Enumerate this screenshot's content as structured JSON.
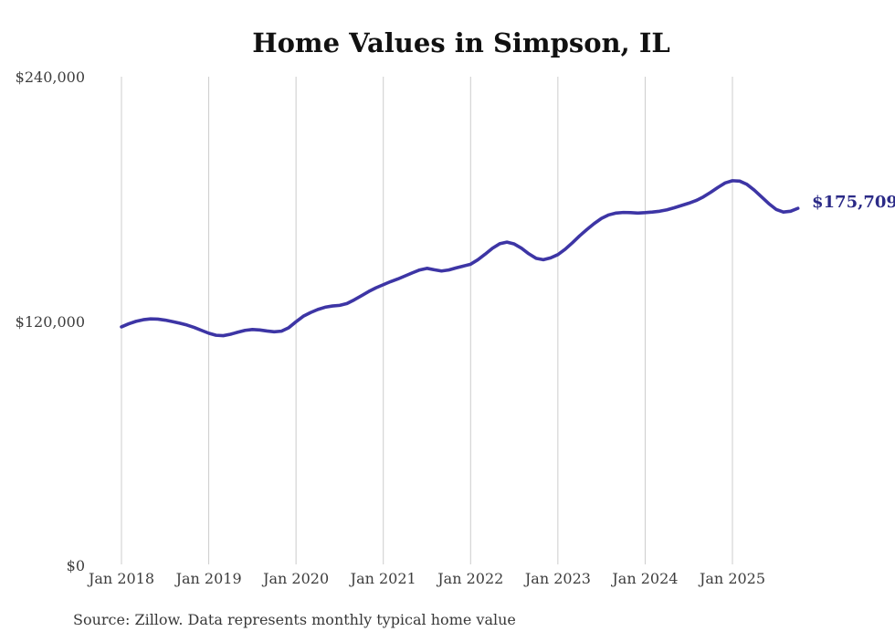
{
  "chart": {
    "title": "Home Values in Simpson, IL",
    "end_label": "$175,709",
    "source_note": "Source: Zillow. Data represents monthly typical home value",
    "y_axis": {
      "labels": [
        "$240,000",
        "$120,000",
        "$0"
      ]
    },
    "x_axis": {
      "labels": [
        "Jan 2018",
        "Jan 2019",
        "Jan 2020",
        "Jan 2021",
        "Jan 2022",
        "Jan 2023",
        "Jan 2024",
        "Jan 2025"
      ]
    },
    "colors": {
      "line": "#3d35a5",
      "end_label_text": "#2b2a87",
      "grid": "#cccccc",
      "title_text": "#111111",
      "axis_text": "#3d3d3d"
    }
  },
  "chart_data": {
    "type": "line",
    "title": "Home Values in Simpson, IL",
    "x_unit": "month",
    "x_start": "2018-01",
    "x_end": "2025-10",
    "x_tick_labels": [
      "Jan 2018",
      "Jan 2019",
      "Jan 2020",
      "Jan 2021",
      "Jan 2022",
      "Jan 2023",
      "Jan 2024",
      "Jan 2025"
    ],
    "ylim": [
      0,
      240000
    ],
    "y_ticks": [
      {
        "value": 0,
        "label": "$0"
      },
      {
        "value": 120000,
        "label": "$120,000"
      },
      {
        "value": 240000,
        "label": "$240,000"
      }
    ],
    "grid": "vertical-only",
    "legend": "none",
    "series": [
      {
        "name": "Monthly typical home value",
        "values": [
          117800,
          119300,
          120500,
          121300,
          121700,
          121600,
          121100,
          120400,
          119600,
          118700,
          117500,
          116100,
          114700,
          113700,
          113500,
          114200,
          115200,
          116100,
          116500,
          116300,
          115800,
          115400,
          115700,
          117400,
          120300,
          123000,
          124800,
          126300,
          127400,
          128000,
          128300,
          129200,
          131000,
          133000,
          135100,
          136900,
          138400,
          139900,
          141200,
          142700,
          144200,
          145600,
          146400,
          145700,
          145100,
          145600,
          146600,
          147500,
          148400,
          150600,
          153300,
          156200,
          158400,
          159200,
          158300,
          156200,
          153500,
          151300,
          150600,
          151500,
          153100,
          155700,
          158900,
          162300,
          165400,
          168300,
          170800,
          172500,
          173400,
          173700,
          173600,
          173400,
          173600,
          173900,
          174300,
          175000,
          176000,
          177100,
          178200,
          179500,
          181300,
          183500,
          185900,
          188100,
          189200,
          189000,
          187400,
          184600,
          181300,
          178000,
          175200,
          173900,
          174300,
          175709
        ]
      }
    ],
    "latest_value": 175709,
    "latest_value_label": "$175,709",
    "source": "Source: Zillow. Data represents monthly typical home value"
  }
}
